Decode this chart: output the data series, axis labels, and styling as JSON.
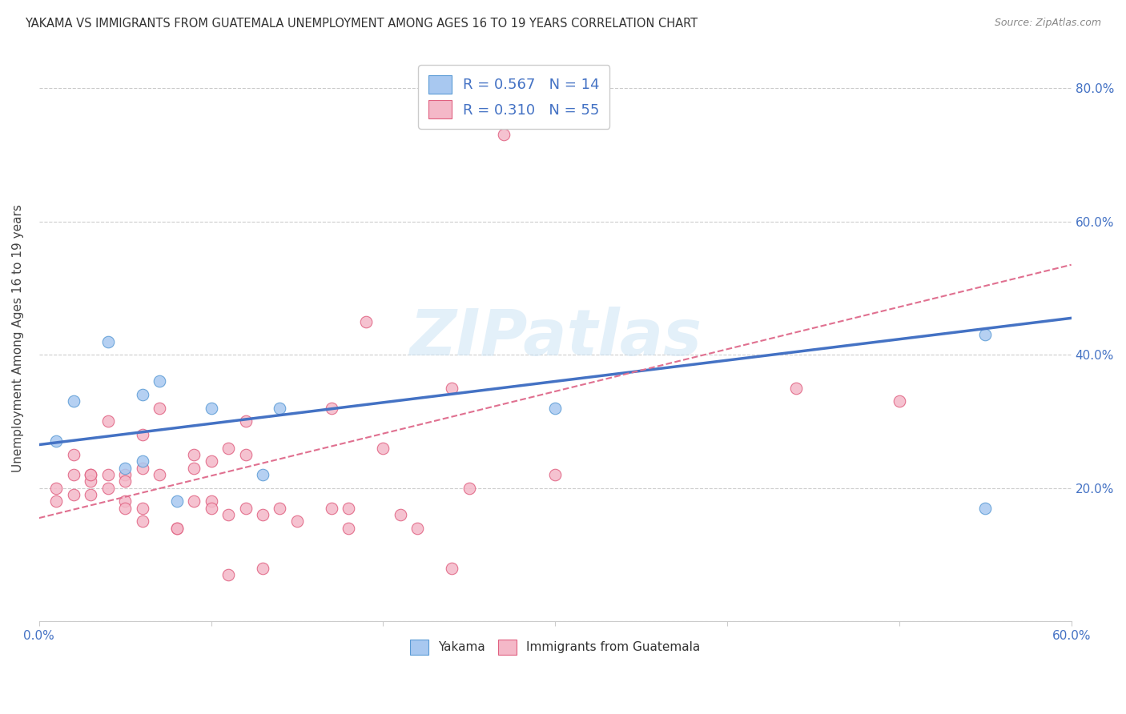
{
  "title": "YAKAMA VS IMMIGRANTS FROM GUATEMALA UNEMPLOYMENT AMONG AGES 16 TO 19 YEARS CORRELATION CHART",
  "source": "Source: ZipAtlas.com",
  "ylabel": "Unemployment Among Ages 16 to 19 years",
  "xlim": [
    0.0,
    0.6
  ],
  "ylim": [
    0.0,
    0.85
  ],
  "x_tick_positions": [
    0.0,
    0.1,
    0.2,
    0.3,
    0.4,
    0.5,
    0.6
  ],
  "x_tick_labels": [
    "0.0%",
    "",
    "",
    "",
    "",
    "",
    "60.0%"
  ],
  "y_tick_positions": [
    0.0,
    0.2,
    0.4,
    0.6,
    0.8
  ],
  "y_tick_labels_right": [
    "",
    "20.0%",
    "40.0%",
    "60.0%",
    "80.0%"
  ],
  "watermark": "ZIPatlas",
  "color_yakama_fill": "#A8C8F0",
  "color_yakama_edge": "#5B9BD5",
  "color_guatemala_fill": "#F4B8C8",
  "color_guatemala_edge": "#E06080",
  "color_blue": "#4472C4",
  "color_pink": "#E07090",
  "color_tick_label": "#4472C4",
  "yakama_x": [
    0.01,
    0.02,
    0.04,
    0.05,
    0.06,
    0.06,
    0.07,
    0.08,
    0.1,
    0.13,
    0.14,
    0.3,
    0.55,
    0.55
  ],
  "yakama_y": [
    0.27,
    0.33,
    0.42,
    0.23,
    0.24,
    0.34,
    0.36,
    0.18,
    0.32,
    0.22,
    0.32,
    0.32,
    0.43,
    0.17
  ],
  "guatemala_x": [
    0.01,
    0.01,
    0.02,
    0.02,
    0.02,
    0.03,
    0.03,
    0.03,
    0.03,
    0.04,
    0.04,
    0.04,
    0.05,
    0.05,
    0.05,
    0.05,
    0.06,
    0.06,
    0.06,
    0.06,
    0.07,
    0.07,
    0.08,
    0.08,
    0.09,
    0.09,
    0.09,
    0.1,
    0.1,
    0.1,
    0.11,
    0.11,
    0.11,
    0.12,
    0.12,
    0.12,
    0.13,
    0.13,
    0.14,
    0.15,
    0.17,
    0.17,
    0.18,
    0.18,
    0.19,
    0.2,
    0.21,
    0.22,
    0.24,
    0.24,
    0.25,
    0.27,
    0.3,
    0.44,
    0.5
  ],
  "guatemala_y": [
    0.2,
    0.18,
    0.22,
    0.25,
    0.19,
    0.22,
    0.21,
    0.22,
    0.19,
    0.2,
    0.22,
    0.3,
    0.22,
    0.21,
    0.18,
    0.17,
    0.23,
    0.28,
    0.17,
    0.15,
    0.32,
    0.22,
    0.14,
    0.14,
    0.25,
    0.23,
    0.18,
    0.24,
    0.18,
    0.17,
    0.26,
    0.16,
    0.07,
    0.3,
    0.25,
    0.17,
    0.16,
    0.08,
    0.17,
    0.15,
    0.32,
    0.17,
    0.14,
    0.17,
    0.45,
    0.26,
    0.16,
    0.14,
    0.08,
    0.35,
    0.2,
    0.73,
    0.22,
    0.35,
    0.33
  ],
  "yakama_trend_x": [
    0.0,
    0.6
  ],
  "yakama_trend_y": [
    0.265,
    0.455
  ],
  "guatemala_trend_x": [
    0.0,
    0.6
  ],
  "guatemala_trend_y": [
    0.155,
    0.535
  ]
}
